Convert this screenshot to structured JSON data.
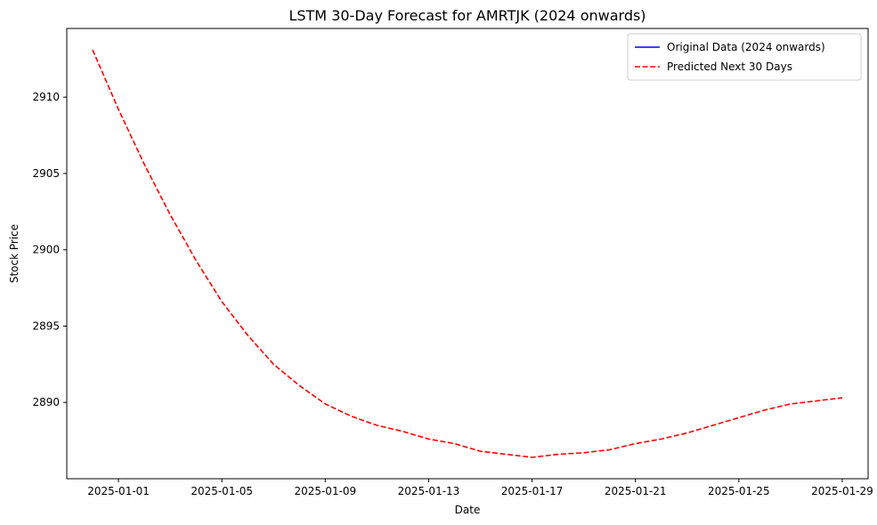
{
  "chart_data": {
    "type": "line",
    "title": "LSTM 30-Day Forecast for AMRTJK (2024 onwards)",
    "xlabel": "Date",
    "ylabel": "Stock Price",
    "x_tick_labels": [
      "2025-01-01",
      "2025-01-05",
      "2025-01-09",
      "2025-01-13",
      "2025-01-17",
      "2025-01-21",
      "2025-01-25",
      "2025-01-29"
    ],
    "x_ticks": [
      "2025-01-01",
      "2025-01-05",
      "2025-01-09",
      "2025-01-13",
      "2025-01-17",
      "2025-01-21",
      "2025-01-25",
      "2025-01-29"
    ],
    "xlim": [
      "2024-12-30",
      "2025-01-30"
    ],
    "y_ticks": [
      2890,
      2895,
      2900,
      2905,
      2910
    ],
    "y_tick_labels": [
      "2890",
      "2895",
      "2900",
      "2905",
      "2910"
    ],
    "ylim": [
      2885.0,
      2914.5
    ],
    "legend_position": "top-right",
    "grid": false,
    "series": [
      {
        "name": "Original Data (2024 onwards)",
        "color": "#0000ff",
        "style": "solid",
        "x": [],
        "values": []
      },
      {
        "name": "Predicted Next 30 Days",
        "color": "#ff0000",
        "style": "dashed",
        "x": [
          "2024-12-31",
          "2025-01-01",
          "2025-01-02",
          "2025-01-03",
          "2025-01-04",
          "2025-01-05",
          "2025-01-06",
          "2025-01-07",
          "2025-01-08",
          "2025-01-09",
          "2025-01-10",
          "2025-01-11",
          "2025-01-12",
          "2025-01-13",
          "2025-01-14",
          "2025-01-15",
          "2025-01-16",
          "2025-01-17",
          "2025-01-18",
          "2025-01-19",
          "2025-01-20",
          "2025-01-21",
          "2025-01-22",
          "2025-01-23",
          "2025-01-24",
          "2025-01-25",
          "2025-01-26",
          "2025-01-27",
          "2025-01-28",
          "2025-01-29"
        ],
        "values": [
          2913.1,
          2909.2,
          2905.6,
          2902.3,
          2899.3,
          2896.6,
          2894.4,
          2892.5,
          2891.1,
          2889.9,
          2889.1,
          2888.5,
          2888.1,
          2887.6,
          2887.3,
          2886.8,
          2886.6,
          2886.4,
          2886.6,
          2886.7,
          2886.9,
          2887.3,
          2887.6,
          2888.0,
          2888.5,
          2889.0,
          2889.5,
          2889.9,
          2890.1,
          2890.3
        ]
      }
    ]
  }
}
